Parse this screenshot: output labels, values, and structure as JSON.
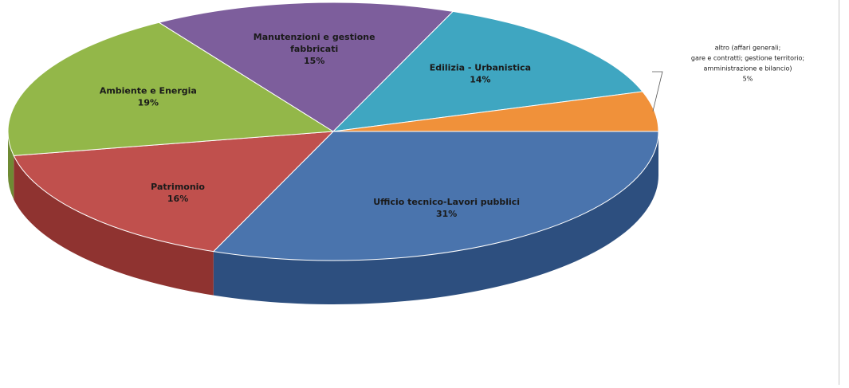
{
  "chart_data": {
    "type": "pie",
    "three_d": true,
    "legend": "none",
    "slices": [
      {
        "name": "Ufficio tecnico-Lavori pubblici",
        "value": 31,
        "label_lines": [
          "Ufficio tecnico-Lavori pubblici"
        ],
        "percent_text": "31%",
        "color": "#4a74ad",
        "side_color": "#2d4f7f"
      },
      {
        "name": "Patrimonio",
        "value": 16,
        "label_lines": [
          "Patrimonio"
        ],
        "percent_text": "16%",
        "color": "#c0504d",
        "side_color": "#8f3330"
      },
      {
        "name": "Ambiente e Energia",
        "value": 19,
        "label_lines": [
          "Ambiente e Energia"
        ],
        "percent_text": "19%",
        "color": "#93b749",
        "side_color": "#6e8a33"
      },
      {
        "name": "Manutenzioni e gestione fabbricati",
        "value": 15,
        "label_lines": [
          "Manutenzioni e gestione",
          "fabbricati"
        ],
        "percent_text": "15%",
        "color": "#7d5e9c",
        "side_color": "#594272"
      },
      {
        "name": "Edilizia - Urbanistica",
        "value": 14,
        "label_lines": [
          "Edilizia - Urbanistica"
        ],
        "percent_text": "14%",
        "color": "#3fa6c1",
        "side_color": "#2b7a8f"
      },
      {
        "name": "altro (affari generali; gare e contratti; gestione territorio; amministrazione e bilancio)",
        "value": 5,
        "label_lines": [
          "altro (affari generali;",
          "gare e contratti; gestione territorio;",
          "amministrazione e bilancio)"
        ],
        "percent_text": "5%",
        "color": "#f0913a",
        "side_color": "#b86a22",
        "external_label": true
      }
    ]
  }
}
